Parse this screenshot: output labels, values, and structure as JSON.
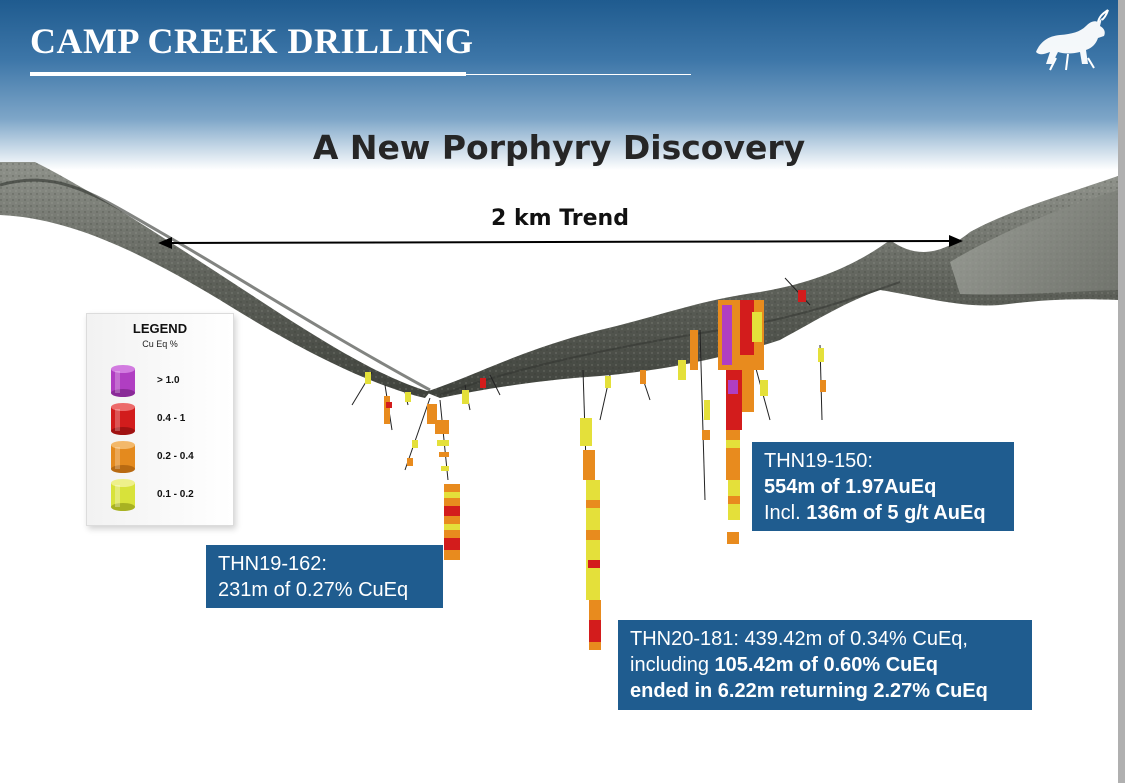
{
  "header": {
    "title": "CAMP CREEK DRILLING",
    "logo_icon": "bull-logo-icon"
  },
  "subtitle": "A New Porphyry Discovery",
  "trend": {
    "label": "2 km Trend"
  },
  "legend": {
    "title": "LEGEND",
    "unit": "Cu Eq %",
    "items": [
      {
        "label": "> 1.0",
        "color": "#b03ec2"
      },
      {
        "label": "0.4 - 1",
        "color": "#d21c1c"
      },
      {
        "label": "0.2 - 0.4",
        "color": "#e48a1e"
      },
      {
        "label": "0.1 - 0.2",
        "color": "#d8e23a"
      }
    ]
  },
  "callouts": {
    "thn19_162": {
      "line1": "THN19-162:",
      "line2": "231m of 0.27% CuEq"
    },
    "thn19_150": {
      "line1": "THN19-150:",
      "line2_bold": "554m of 1.97AuEq",
      "line3_prefix": "Incl. ",
      "line3_bold": "136m of 5 g/t AuEq"
    },
    "thn20_181": {
      "line1": "THN20-181: 439.42m of 0.34% CuEq,",
      "line2_prefix": "including ",
      "line2_bold": "105.42m of 0.60% CuEq",
      "line3_bold": "ended in 6.22m returning 2.27% CuEq"
    }
  },
  "colors": {
    "header_blue": "#1f5b8f",
    "callout_blue": "#1f5c8f",
    "terrain_gray": "#6f726c"
  }
}
